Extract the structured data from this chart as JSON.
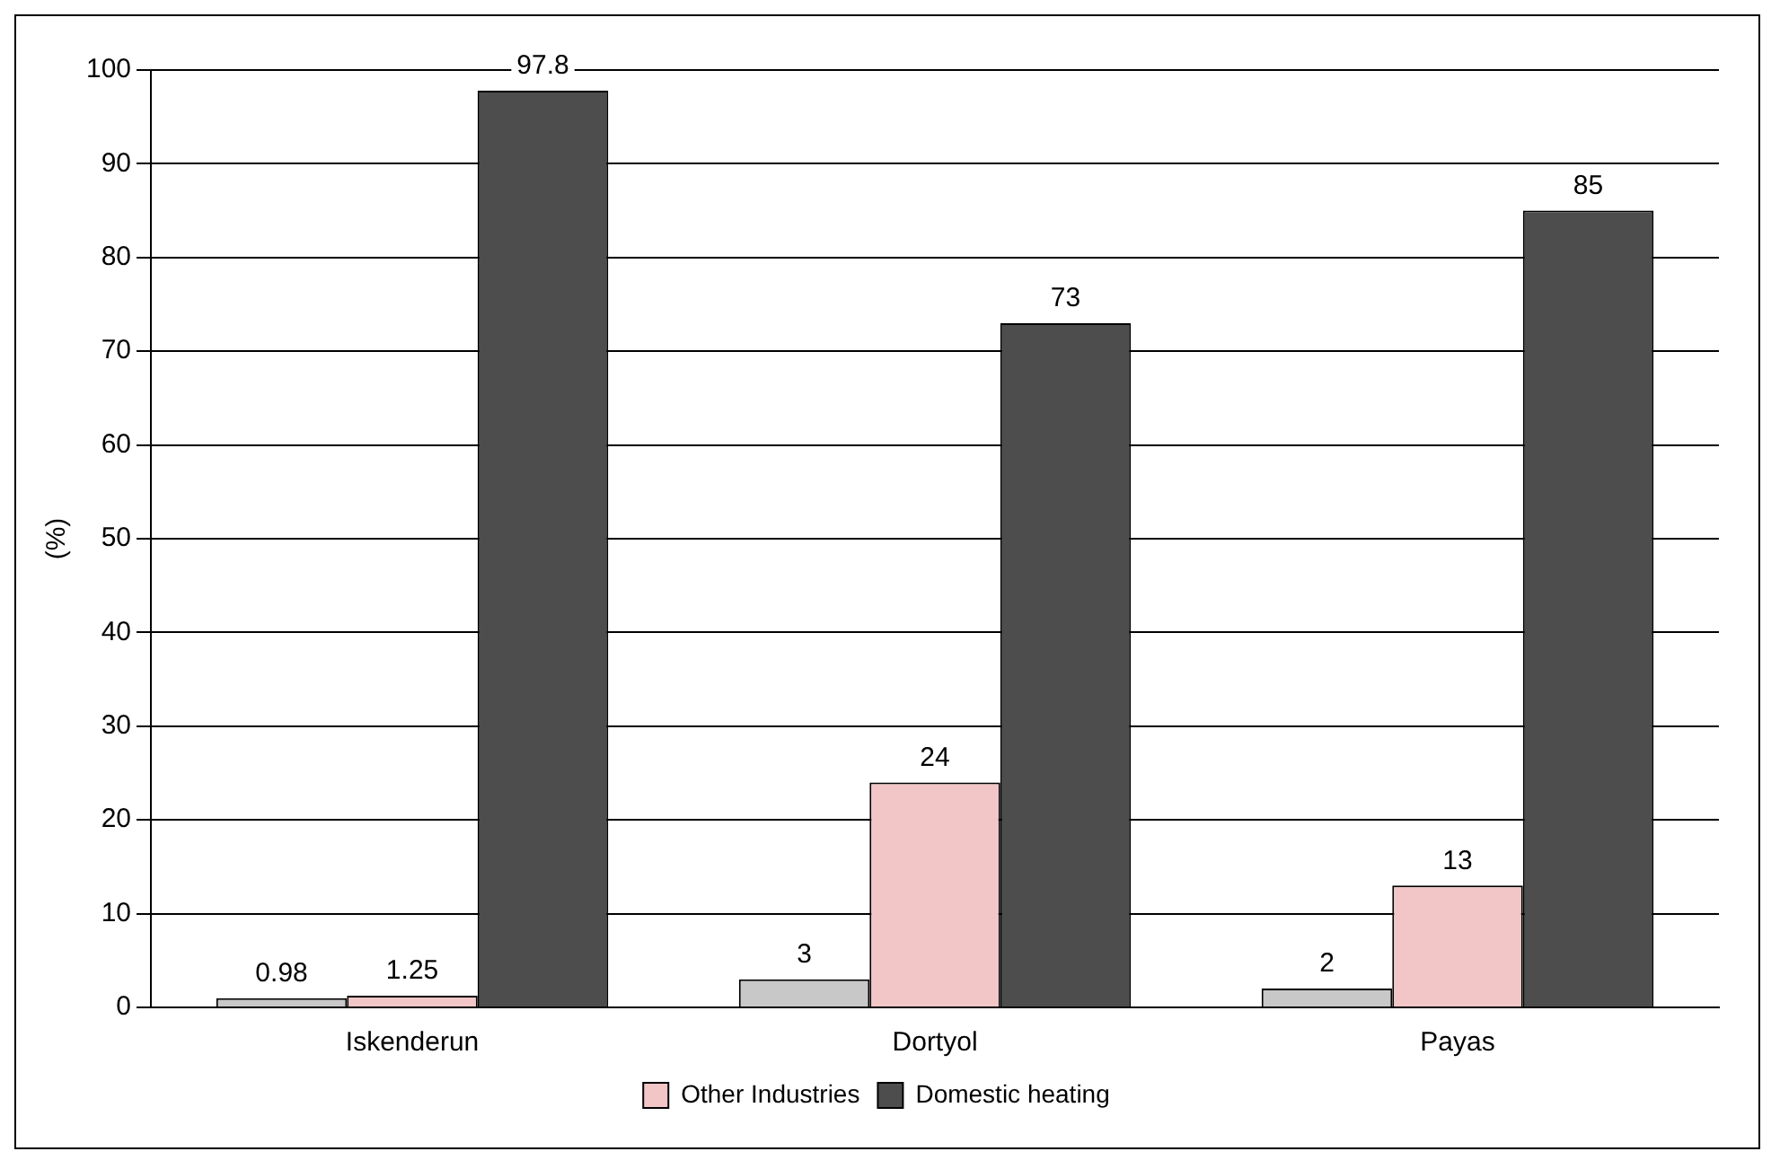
{
  "chart_data": {
    "type": "bar",
    "ylabel": "(%)",
    "categories": [
      "Iskenderun",
      "Dortyol",
      "Payas"
    ],
    "series": [
      {
        "color": "#c8c8c8",
        "values": [
          0.98,
          3,
          2
        ]
      },
      {
        "name": "Other Industries",
        "color": "#f2c6c6",
        "values": [
          1.25,
          24,
          13
        ]
      },
      {
        "name": "Domestic heating",
        "color": "#4d4d4d",
        "values": [
          97.8,
          73,
          85
        ]
      }
    ],
    "ylim": [
      0,
      100
    ],
    "yticks": [
      0,
      10,
      20,
      30,
      40,
      50,
      60,
      70,
      80,
      90,
      100
    ],
    "grid": "y",
    "legend": "bottom",
    "data_labels": true
  }
}
